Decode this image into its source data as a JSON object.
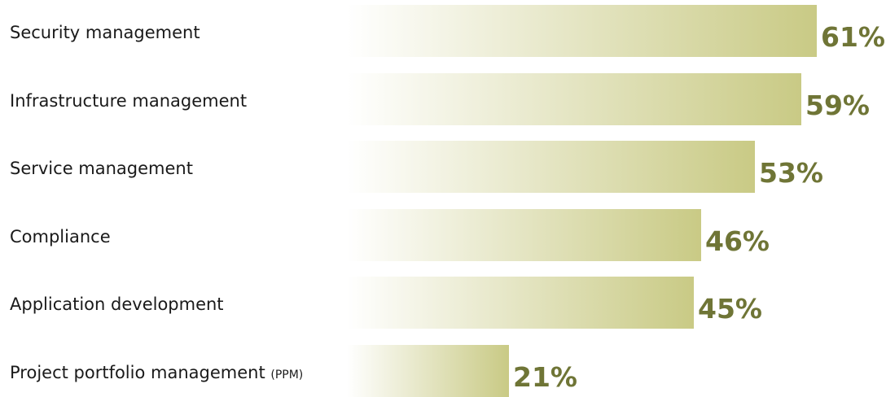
{
  "chart_data": {
    "type": "bar",
    "orientation": "horizontal",
    "categories": [
      {
        "main": "Security management",
        "suffix": ""
      },
      {
        "main": "Infrastructure management",
        "suffix": ""
      },
      {
        "main": "Service management",
        "suffix": ""
      },
      {
        "main": "Compliance",
        "suffix": ""
      },
      {
        "main": "Application development",
        "suffix": ""
      },
      {
        "main": "Project portfolio management",
        "suffix": "(PPM)"
      }
    ],
    "values": [
      61,
      59,
      53,
      46,
      45,
      21
    ],
    "value_labels": [
      "61%",
      "59%",
      "53%",
      "46%",
      "45%",
      "21%"
    ],
    "unit": "%",
    "title": "",
    "xlabel": "",
    "ylabel": "",
    "xlim": [
      0,
      61
    ],
    "grid": false,
    "legend": "none",
    "colors": {
      "bar_start": "#ffffff",
      "bar_end": "#c9ca85",
      "value_text": "#6f7536",
      "label_text": "#1a1a1a"
    }
  }
}
